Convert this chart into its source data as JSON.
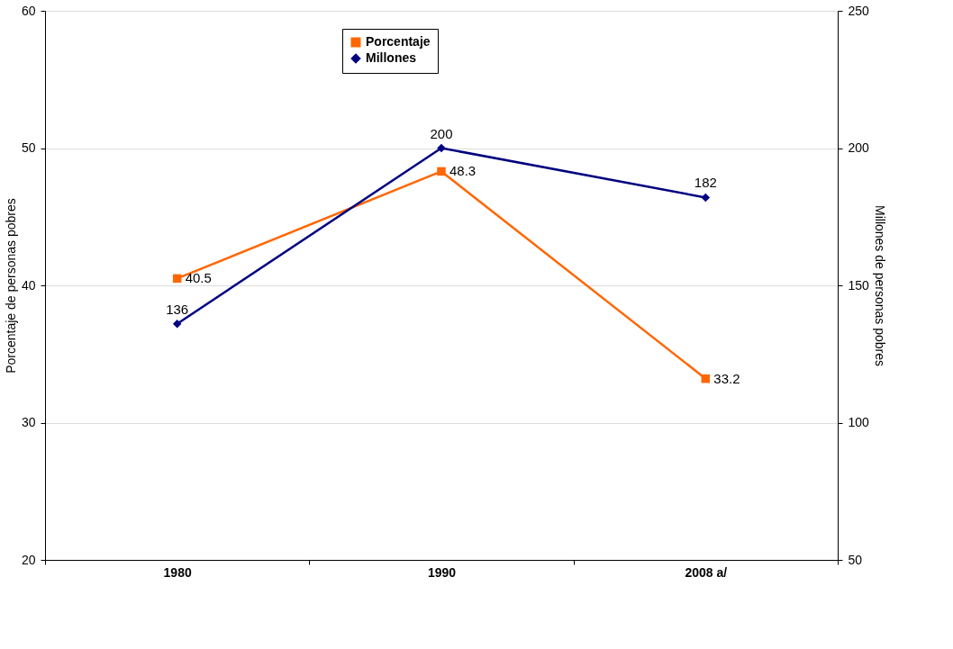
{
  "chart_data": {
    "type": "line",
    "categories": [
      "1980",
      "1990",
      "2008 a/"
    ],
    "ylabel": "Porcentaje de personas pobres",
    "y2label": "Millones de personas pobres",
    "ylim": [
      20,
      60
    ],
    "yticks": [
      20,
      30,
      40,
      50,
      60
    ],
    "y2lim": [
      50,
      250
    ],
    "y2ticks": [
      50,
      100,
      150,
      200,
      250
    ],
    "series": [
      {
        "name": "Porcentaje",
        "color": "#ff6600",
        "values": [
          40.5,
          48.3,
          33.2
        ],
        "marker": "square"
      },
      {
        "name": "Millones",
        "color": "#000080",
        "values": [
          136,
          200,
          182
        ],
        "axis": "y2",
        "marker": "diamond"
      }
    ],
    "data_labels": true,
    "grid": "y",
    "legend": "top",
    "line_style": "solid"
  }
}
